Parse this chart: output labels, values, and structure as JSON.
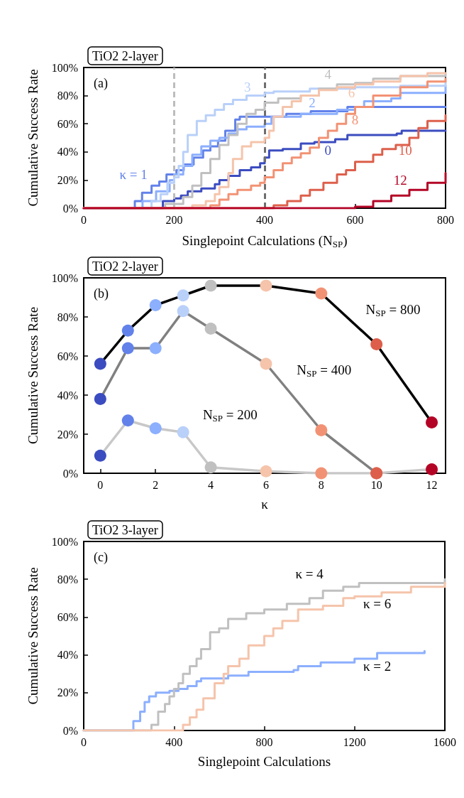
{
  "chart_data": [
    {
      "type": "step",
      "title": "TiO2 2-layer",
      "xlabel": "Singlepoint Calculations (N$_{SP}$)",
      "ylabel": "Cumulative Success Rate",
      "xlim": [
        0,
        800
      ],
      "xticks": [
        0,
        200,
        400,
        600,
        800
      ],
      "ylim": [
        0,
        100
      ],
      "yticks": [
        {
          "value": 0,
          "label": "0%"
        },
        {
          "value": 20,
          "label": "20%"
        },
        {
          "value": 40,
          "label": "40%"
        },
        {
          "value": 60,
          "label": "60%"
        },
        {
          "value": 80,
          "label": "80%"
        },
        {
          "value": 100,
          "label": "100%"
        }
      ],
      "grid": false,
      "legend": false,
      "ref_lines": [
        {
          "axis": "x",
          "value": 200,
          "color": "#bdbdbd",
          "line_style": "dashed"
        },
        {
          "axis": "x",
          "value": 400,
          "color": "#6e6e6e",
          "line_style": "dashed"
        }
      ],
      "series": [
        {
          "name": "0",
          "color": "#3b4cc0",
          "x": [
            0,
            160,
            175,
            200,
            215,
            230,
            260,
            290,
            300,
            320,
            345,
            370,
            390,
            400,
            410,
            440,
            480,
            510,
            556,
            583,
            692,
            703,
            800
          ],
          "values": [
            0,
            0,
            5,
            7,
            9,
            12,
            14,
            17,
            20,
            23,
            27,
            29,
            32,
            36,
            41,
            42,
            46,
            47,
            49,
            52,
            53,
            55,
            55
          ]
        },
        {
          "name": "κ = 1",
          "color": "#6282ea",
          "x": [
            0,
            99,
            113,
            129,
            150,
            167,
            183,
            205,
            221,
            243,
            264,
            280,
            297,
            313,
            335,
            345,
            421,
            448,
            502,
            583,
            800
          ],
          "values": [
            0,
            0,
            5,
            11,
            16,
            19,
            24,
            27,
            31,
            36,
            41,
            44,
            48,
            55,
            63,
            65,
            65,
            67,
            69,
            72,
            72
          ]
        },
        {
          "name": "2",
          "color": "#8caffe",
          "x": [
            0,
            104,
            130,
            160,
            190,
            200,
            220,
            240,
            260,
            280,
            300,
            320,
            340,
            360,
            400,
            415,
            480,
            560,
            600,
            620,
            680,
            700,
            800
          ],
          "values": [
            0,
            0,
            5,
            12,
            20,
            24,
            30,
            38,
            44,
            48,
            50,
            53,
            56,
            58,
            60,
            65,
            67,
            70,
            72,
            76,
            78,
            82,
            87
          ]
        },
        {
          "name": "3",
          "color": "#b9d0f9",
          "x": [
            0,
            140,
            150,
            170,
            185,
            200,
            210,
            220,
            230,
            250,
            270,
            290,
            310,
            330,
            360,
            400,
            420,
            500,
            600,
            700,
            800
          ],
          "values": [
            0,
            0,
            5,
            10,
            18,
            22,
            30,
            40,
            52,
            62,
            66,
            70,
            74,
            77,
            80,
            82,
            83,
            85,
            86,
            87,
            90
          ]
        },
        {
          "name": "4",
          "color": "#c0c0c0",
          "x": [
            0,
            140,
            180,
            220,
            240,
            260,
            280,
            300,
            320,
            340,
            360,
            380,
            400,
            430,
            480,
            520,
            560,
            600,
            640,
            700,
            800
          ],
          "values": [
            0,
            0,
            3,
            8,
            16,
            25,
            35,
            45,
            52,
            60,
            67,
            70,
            75,
            78,
            80,
            85,
            88,
            89,
            92,
            94,
            96
          ]
        },
        {
          "name": "6",
          "color": "#f5c4ab",
          "x": [
            0,
            220,
            240,
            270,
            290,
            300,
            320,
            330,
            350,
            370,
            400,
            410,
            420,
            440,
            460,
            480,
            520,
            560,
            600,
            640,
            700,
            760,
            800
          ],
          "values": [
            0,
            0,
            2,
            5,
            10,
            15,
            25,
            35,
            44,
            47,
            50,
            55,
            65,
            72,
            76,
            80,
            84,
            86,
            88,
            90,
            94,
            96,
            96
          ]
        },
        {
          "name": "8",
          "color": "#f29274",
          "x": [
            0,
            250,
            280,
            300,
            320,
            340,
            370,
            390,
            400,
            420,
            440,
            460,
            480,
            500,
            520,
            540,
            560,
            580,
            600,
            640,
            700,
            760,
            800
          ],
          "values": [
            0,
            0,
            2,
            6,
            10,
            13,
            16,
            18,
            22,
            27,
            32,
            36,
            39,
            43,
            50,
            55,
            60,
            67,
            72,
            80,
            86,
            90,
            92
          ]
        },
        {
          "name": "10",
          "color": "#dd5f4b",
          "x": [
            0,
            380,
            420,
            450,
            480,
            500,
            530,
            560,
            580,
            600,
            640,
            660,
            690,
            720,
            740,
            760,
            800
          ],
          "values": [
            0,
            0,
            2,
            5,
            9,
            13,
            18,
            24,
            27,
            33,
            38,
            42,
            45,
            50,
            57,
            62,
            66
          ]
        },
        {
          "name": "12",
          "color": "#b40426",
          "x": [
            0,
            580,
            600,
            640,
            680,
            720,
            760,
            800
          ],
          "values": [
            0,
            0,
            1,
            5,
            9,
            13,
            18,
            25
          ]
        }
      ],
      "annotations": [
        "(a)"
      ]
    },
    {
      "type": "line",
      "title": "TiO2 2-layer",
      "xlabel": "κ",
      "ylabel": "Cumulative Success Rate",
      "xlim": [
        -0.6,
        12.5
      ],
      "xticks": [
        0,
        2,
        4,
        6,
        8,
        10,
        12
      ],
      "ylim": [
        0,
        100
      ],
      "yticks": [
        {
          "value": 0,
          "label": "0%"
        },
        {
          "value": 20,
          "label": "20%"
        },
        {
          "value": 40,
          "label": "40%"
        },
        {
          "value": 60,
          "label": "60%"
        },
        {
          "value": 80,
          "label": "80%"
        },
        {
          "value": 100,
          "label": "100%"
        }
      ],
      "grid": false,
      "legend": false,
      "marker": "circle",
      "x": [
        0,
        1,
        2,
        3,
        4,
        6,
        8,
        10,
        12
      ],
      "series": [
        {
          "name": "N$_{SP}$ = 200",
          "color": "#c8c8c8",
          "colors": [
            "#3b4cc0",
            "#6282ea",
            "#8caffe",
            "#b9d0f9",
            "#c0c0c0",
            "#f5c4ab",
            "#f29274",
            "#dd5f4b",
            "#b40426"
          ],
          "values": [
            9,
            27,
            23,
            21,
            3,
            1,
            0,
            0,
            2
          ]
        },
        {
          "name": "N$_{SP}$ = 400",
          "color": "#808080",
          "colors": [
            "#3b4cc0",
            "#6282ea",
            "#8caffe",
            "#b9d0f9",
            "#c0c0c0",
            "#f5c4ab",
            "#f29274",
            "#dd5f4b",
            "#b40426"
          ],
          "values": [
            38,
            64,
            64,
            83,
            74,
            56,
            22,
            0,
            null
          ]
        },
        {
          "name": "N$_{SP}$ = 800",
          "color": "#000000",
          "colors": [
            "#3b4cc0",
            "#6282ea",
            "#8caffe",
            "#b9d0f9",
            "#c0c0c0",
            "#f5c4ab",
            "#f29274",
            "#dd5f4b",
            "#b40426"
          ],
          "values": [
            56,
            73,
            86,
            91,
            96,
            96,
            92,
            66,
            26
          ]
        }
      ],
      "annotations": [
        "(b)"
      ]
    },
    {
      "type": "step",
      "title": "TiO2 3-layer",
      "xlabel": "Singlepoint Calculations",
      "ylabel": "Cumulative Success Rate",
      "xlim": [
        0,
        1600
      ],
      "xticks": [
        0,
        400,
        800,
        1200,
        1600
      ],
      "ylim": [
        0,
        100
      ],
      "yticks": [
        {
          "value": 0,
          "label": "0%"
        },
        {
          "value": 20,
          "label": "20%"
        },
        {
          "value": 40,
          "label": "40%"
        },
        {
          "value": 60,
          "label": "60%"
        },
        {
          "value": 80,
          "label": "80%"
        },
        {
          "value": 100,
          "label": "100%"
        }
      ],
      "grid": false,
      "legend": false,
      "series": [
        {
          "name": "κ = 2",
          "color": "#8caffe",
          "x": [
            0,
            180,
            220,
            250,
            270,
            290,
            320,
            380,
            420,
            460,
            500,
            520,
            640,
            730,
            930,
            950,
            1050,
            1200,
            1300,
            1510
          ],
          "values": [
            0,
            0,
            5,
            10,
            15,
            18,
            20,
            21,
            22,
            23.5,
            26,
            27.5,
            29,
            31,
            32,
            34,
            36,
            38,
            41,
            42
          ]
        },
        {
          "name": "κ = 4",
          "color": "#c0c0c0",
          "x": [
            0,
            280,
            300,
            330,
            360,
            380,
            400,
            420,
            440,
            470,
            500,
            520,
            560,
            600,
            640,
            720,
            800,
            900,
            1000,
            1060,
            1150,
            1220,
            1600
          ],
          "values": [
            0,
            0,
            3,
            10,
            14,
            18,
            22,
            25,
            30,
            34,
            38,
            43,
            52,
            54,
            59,
            62,
            64,
            67,
            70,
            74,
            76,
            78,
            80
          ]
        },
        {
          "name": "κ = 6",
          "color": "#f5c4ab",
          "x": [
            0,
            400,
            440,
            470,
            500,
            530,
            580,
            620,
            640,
            690,
            730,
            800,
            840,
            880,
            950,
            1060,
            1150,
            1200,
            1320,
            1450,
            1600
          ],
          "values": [
            0,
            0,
            3,
            7,
            11,
            17,
            25,
            30,
            34,
            38,
            45,
            50,
            54,
            58,
            64,
            66,
            70,
            71,
            73,
            76,
            78
          ]
        }
      ],
      "annotations": [
        "(c)"
      ]
    }
  ]
}
